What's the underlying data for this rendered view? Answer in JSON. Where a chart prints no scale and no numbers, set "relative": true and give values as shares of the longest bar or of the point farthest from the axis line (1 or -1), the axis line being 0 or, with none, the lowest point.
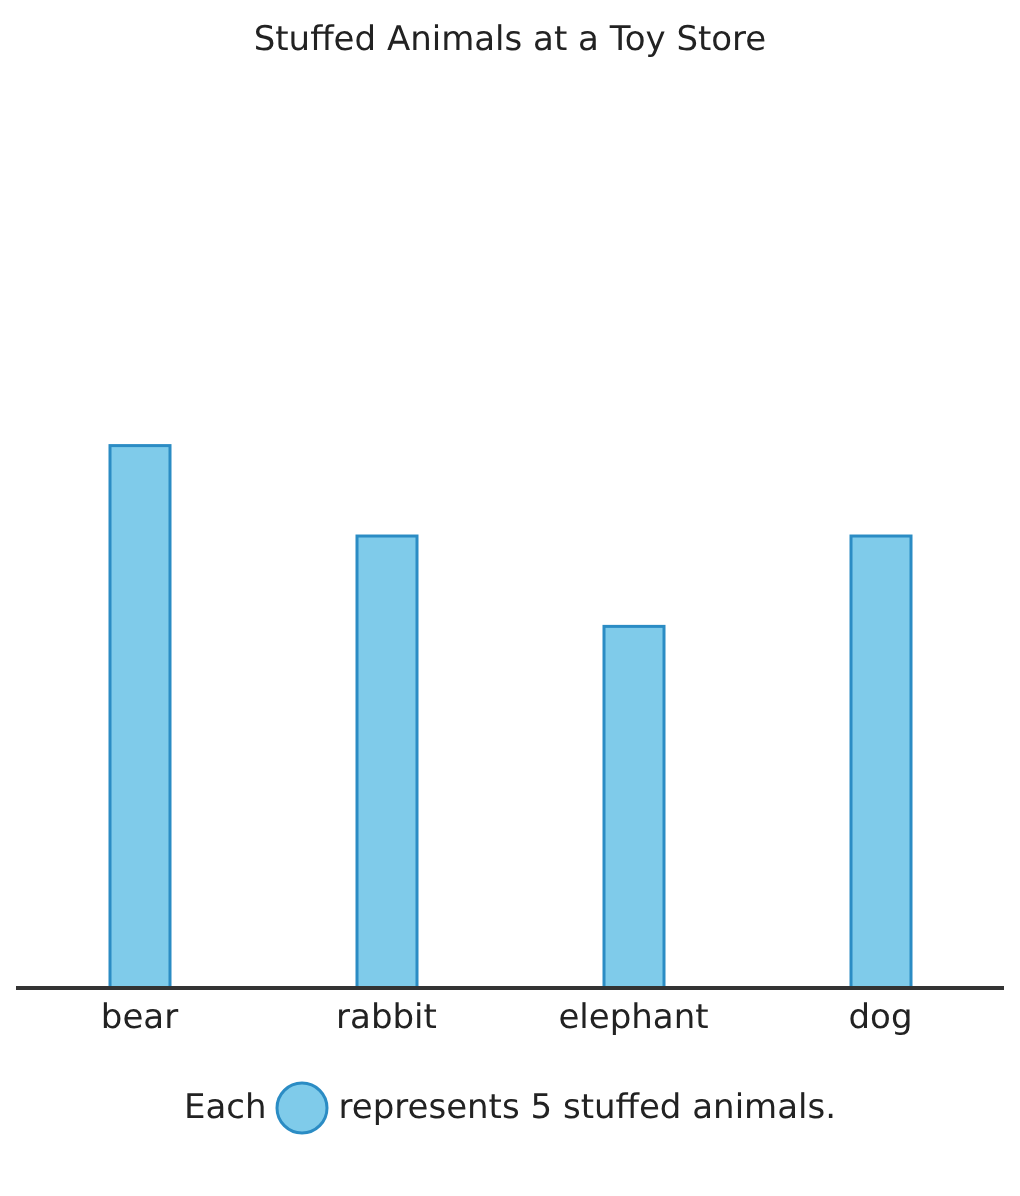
{
  "chart_data": {
    "type": "bar",
    "title": "Stuffed Animals at a Toy Store",
    "categories": [
      "bear",
      "rabbit",
      "elephant",
      "dog"
    ],
    "values": [
      1,
      0.8333,
      0.6667,
      0.8333
    ],
    "color": "#7fcbea",
    "relative": true,
    "annotations": [
      "Each",
      "represents 5 stuffed animals."
    ]
  }
}
